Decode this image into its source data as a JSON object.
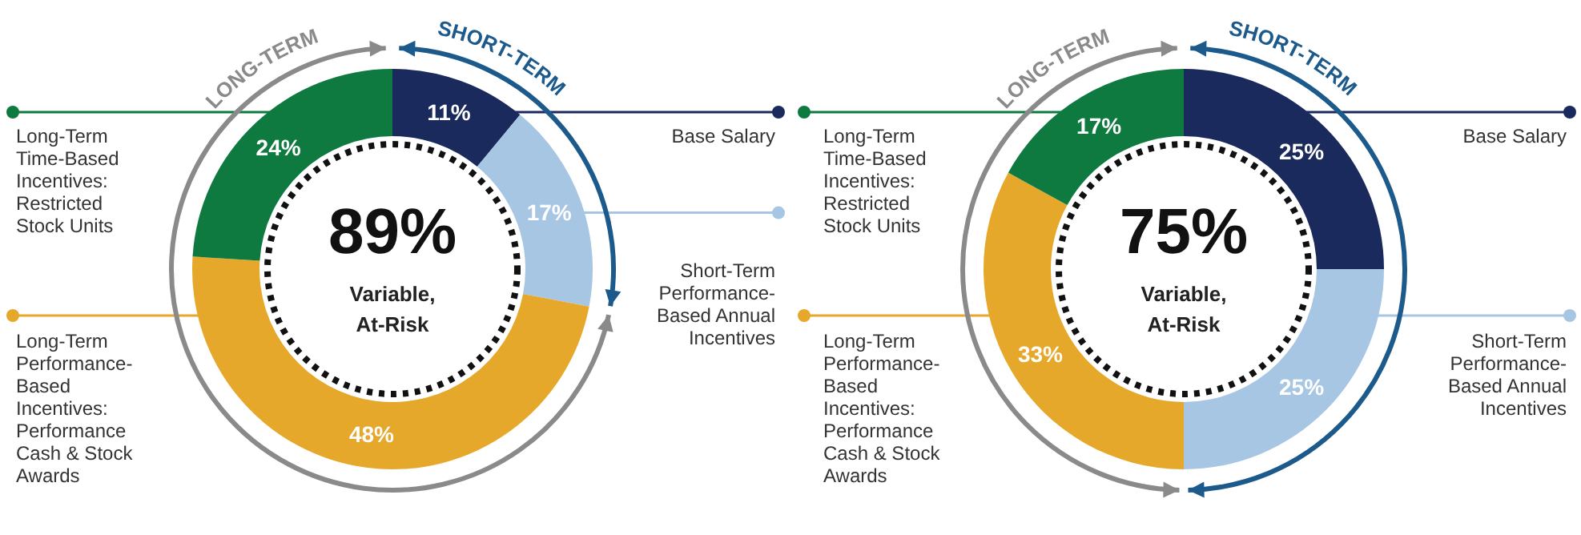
{
  "chart_data": [
    {
      "type": "donut",
      "categories": [
        "Base Salary",
        "Short-Term Performance-Based Annual Incentives",
        "Long-Term Performance-Based Incentives: Performance Cash & Stock Awards",
        "Long-Term Time-Based Incentives: Restricted Stock Units"
      ],
      "values": [
        11,
        17,
        48,
        24
      ],
      "value_labels": [
        "11%",
        "17%",
        "48%",
        "24%"
      ],
      "colors": [
        "#1b2a5c",
        "#a7c6e3",
        "#e6a82a",
        "#0e7a3f"
      ],
      "annotations": [
        "89%",
        "Variable, At-Risk",
        "SHORT-TERM",
        "LONG-TERM"
      ],
      "legend": "right"
    },
    {
      "type": "donut",
      "categories": [
        "Base Salary",
        "Short-Term Performance-Based Annual Incentives",
        "Long-Term Performance-Based Incentives: Performance Cash & Stock Awards",
        "Long-Term Time-Based Incentives: Restricted Stock Units"
      ],
      "values": [
        25,
        25,
        33,
        17
      ],
      "value_labels": [
        "25%",
        "25%",
        "33%",
        "17%"
      ],
      "colors": [
        "#1b2a5c",
        "#a7c6e3",
        "#e6a82a",
        "#0e7a3f"
      ],
      "annotations": [
        "75%",
        "Variable, At-Risk",
        "SHORT-TERM",
        "LONG-TERM"
      ],
      "legend": "right"
    }
  ]
}
